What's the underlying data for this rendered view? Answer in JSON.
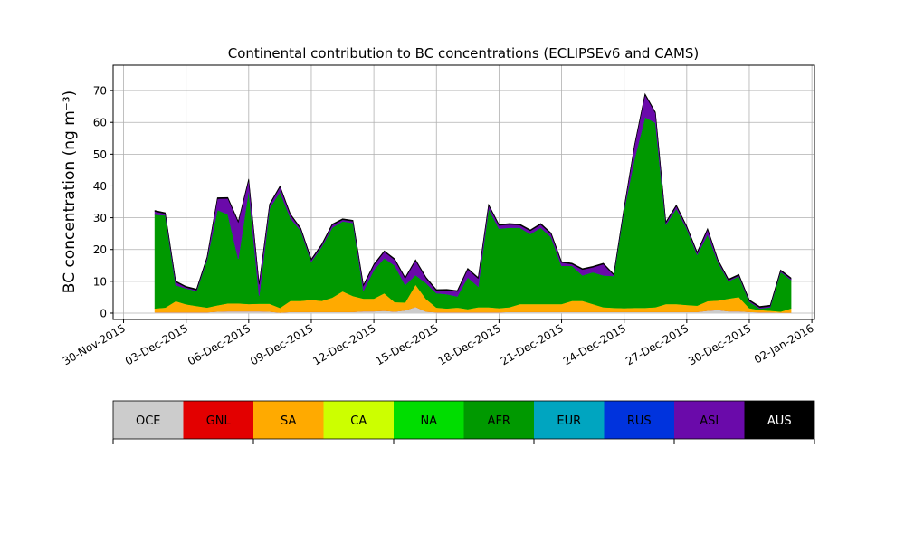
{
  "chart_data": {
    "type": "area",
    "stacked": true,
    "title": "Continental contribution to BC concentrations (ECLIPSEv6 and CAMS)",
    "ylabel": "BC concentration (ng m⁻³)",
    "xlabel": "",
    "ylim": [
      -2,
      78
    ],
    "yticks": [
      0,
      10,
      20,
      30,
      40,
      50,
      60,
      70
    ],
    "xlim": [
      "2015-11-29T12:00",
      "2016-01-02T03:00"
    ],
    "xtick_labels": [
      "30-Nov-2015",
      "03-Dec-2015",
      "06-Dec-2015",
      "09-Dec-2015",
      "12-Dec-2015",
      "15-Dec-2015",
      "18-Dec-2015",
      "21-Dec-2015",
      "24-Dec-2015",
      "27-Dec-2015",
      "30-Dec-2015",
      "02-Jan-2016"
    ],
    "grid": true,
    "legend_position": "colorbar-below",
    "x": [
      "2015-12-01T12:00",
      "2015-12-02T00:00",
      "2015-12-02T12:00",
      "2015-12-03T00:00",
      "2015-12-03T12:00",
      "2015-12-04T00:00",
      "2015-12-04T12:00",
      "2015-12-05T00:00",
      "2015-12-05T12:00",
      "2015-12-06T00:00",
      "2015-12-06T12:00",
      "2015-12-07T00:00",
      "2015-12-07T12:00",
      "2015-12-08T00:00",
      "2015-12-08T12:00",
      "2015-12-09T00:00",
      "2015-12-09T12:00",
      "2015-12-10T00:00",
      "2015-12-10T12:00",
      "2015-12-11T00:00",
      "2015-12-11T12:00",
      "2015-12-12T00:00",
      "2015-12-12T12:00",
      "2015-12-13T00:00",
      "2015-12-13T12:00",
      "2015-12-14T00:00",
      "2015-12-14T12:00",
      "2015-12-15T00:00",
      "2015-12-15T12:00",
      "2015-12-16T00:00",
      "2015-12-16T12:00",
      "2015-12-17T00:00",
      "2015-12-17T12:00",
      "2015-12-18T00:00",
      "2015-12-18T12:00",
      "2015-12-19T00:00",
      "2015-12-19T12:00",
      "2015-12-20T00:00",
      "2015-12-20T12:00",
      "2015-12-21T00:00",
      "2015-12-21T12:00",
      "2015-12-22T00:00",
      "2015-12-22T12:00",
      "2015-12-23T00:00",
      "2015-12-23T12:00",
      "2015-12-24T00:00",
      "2015-12-24T12:00",
      "2015-12-25T00:00",
      "2015-12-25T12:00",
      "2015-12-26T00:00",
      "2015-12-26T12:00",
      "2015-12-27T00:00",
      "2015-12-27T12:00",
      "2015-12-28T00:00",
      "2015-12-28T12:00",
      "2015-12-29T00:00",
      "2015-12-29T12:00",
      "2015-12-30T00:00",
      "2015-12-30T12:00",
      "2015-12-31T00:00",
      "2015-12-31T12:00",
      "2016-01-01T00:00"
    ],
    "series": [
      {
        "name": "OCE",
        "color": "#cccccc",
        "values": [
          0.3,
          0.3,
          0.3,
          0.3,
          0.3,
          0.3,
          0.5,
          0.6,
          0.6,
          0.6,
          0.6,
          0.5,
          0.2,
          0.4,
          0.4,
          0.4,
          0.4,
          0.4,
          0.4,
          0.4,
          0.6,
          0.6,
          0.8,
          0.5,
          0.9,
          2.0,
          0.5,
          0.3,
          0.3,
          0.3,
          0.3,
          0.3,
          0.3,
          0.3,
          0.4,
          0.4,
          0.4,
          0.4,
          0.4,
          0.4,
          0.4,
          0.4,
          0.4,
          0.4,
          0.4,
          0.4,
          0.4,
          0.4,
          0.4,
          0.4,
          0.4,
          0.4,
          0.4,
          0.8,
          1.0,
          0.6,
          0.6,
          0.4,
          0.3,
          0.3,
          0.2,
          0.2
        ]
      },
      {
        "name": "GNL",
        "color": "#e30000",
        "values": [
          0,
          0,
          0,
          0,
          0,
          0,
          0,
          0,
          0,
          0,
          0,
          0,
          0,
          0,
          0,
          0,
          0,
          0,
          0,
          0,
          0,
          0,
          0,
          0,
          0,
          0,
          0,
          0,
          0,
          0,
          0,
          0,
          0,
          0,
          0,
          0,
          0,
          0,
          0,
          0,
          0,
          0,
          0,
          0,
          0,
          0,
          0,
          0,
          0,
          0,
          0,
          0,
          0,
          0,
          0,
          0,
          0,
          0,
          0,
          0,
          0,
          0
        ]
      },
      {
        "name": "SA",
        "color": "#ffaa00",
        "values": [
          1.2,
          1.5,
          3.5,
          2.5,
          2.0,
          1.5,
          2.0,
          2.5,
          2.5,
          2.3,
          2.4,
          2.5,
          1.5,
          3.5,
          3.5,
          3.8,
          3.5,
          4.5,
          6.5,
          5.0,
          4.0,
          4.0,
          5.5,
          3.0,
          2.5,
          7.0,
          4.0,
          1.5,
          1.2,
          1.5,
          1.0,
          1.6,
          1.6,
          1.3,
          1.5,
          2.5,
          2.5,
          2.5,
          2.5,
          2.5,
          3.5,
          3.5,
          2.5,
          1.5,
          1.3,
          1.2,
          1.3,
          1.3,
          1.5,
          2.5,
          2.5,
          2.2,
          2.0,
          3.0,
          3.0,
          4.0,
          4.5,
          1.2,
          0.7,
          0.5,
          0.3,
          1.3
        ]
      },
      {
        "name": "CA",
        "color": "#ccff00",
        "values": [
          0,
          0,
          0,
          0,
          0,
          0,
          0,
          0,
          0,
          0,
          0,
          0,
          0,
          0,
          0,
          0,
          0,
          0,
          0,
          0,
          0,
          0,
          0,
          0,
          0,
          0,
          0,
          0,
          0,
          0,
          0,
          0,
          0,
          0,
          0,
          0,
          0,
          0,
          0,
          0,
          0,
          0,
          0,
          0,
          0,
          0,
          0,
          0,
          0,
          0,
          0,
          0,
          0,
          0,
          0,
          0,
          0,
          0,
          0,
          0,
          0,
          0
        ]
      },
      {
        "name": "NA",
        "color": "#00dd00",
        "values": [
          0,
          0,
          0,
          0,
          0,
          0,
          0,
          0,
          0,
          0,
          0,
          0,
          0,
          0,
          0,
          0,
          0,
          0,
          0,
          0,
          0,
          0,
          0,
          0,
          0,
          0,
          0,
          0,
          0,
          0,
          0,
          0,
          0,
          0,
          0,
          0,
          0,
          0,
          0,
          0,
          0,
          0,
          0,
          0,
          0,
          0,
          0,
          0,
          0,
          0,
          0,
          0,
          0,
          0,
          0,
          0,
          0,
          0,
          0,
          0,
          0,
          0
        ]
      },
      {
        "name": "AFR",
        "color": "#009900",
        "values": [
          29.5,
          29.0,
          5.0,
          5.0,
          4.7,
          15.0,
          30.0,
          28.0,
          14.0,
          36.0,
          2.5,
          30.0,
          36.5,
          26.0,
          22.0,
          12.0,
          17.0,
          22.0,
          22.0,
          23.0,
          2.5,
          9.0,
          11.0,
          11.5,
          5.5,
          3.0,
          5.0,
          4.5,
          4.5,
          3.5,
          10.0,
          6.5,
          31.0,
          25.0,
          25.0,
          24.0,
          22.0,
          24.0,
          21.0,
          12.0,
          11.0,
          8.0,
          10.0,
          10.0,
          10.0,
          31.0,
          47.0,
          60.0,
          58.0,
          25.0,
          30.0,
          24.0,
          16.0,
          21.0,
          12.0,
          5.5,
          6.5,
          2.0,
          0.5,
          1.1,
          12.5,
          9.0
        ]
      },
      {
        "name": "EUR",
        "color": "#00a5c0",
        "values": [
          0,
          0,
          0,
          0,
          0,
          0,
          0,
          0,
          0,
          0,
          0,
          0,
          0,
          0,
          0,
          0,
          0,
          0,
          0,
          0,
          0,
          0,
          0,
          0,
          0,
          0,
          0,
          0,
          0,
          0,
          0,
          0,
          0,
          0,
          0,
          0,
          0,
          0,
          0,
          0,
          0,
          0,
          0,
          0,
          0,
          0,
          0,
          0,
          0,
          0,
          0,
          0,
          0,
          0,
          0,
          0,
          0,
          0,
          0,
          0,
          0,
          0
        ]
      },
      {
        "name": "RUS",
        "color": "#0033dd",
        "values": [
          0,
          0,
          0,
          0,
          0,
          0,
          0,
          0,
          0,
          0,
          0,
          0,
          0,
          0,
          0,
          0,
          0,
          0,
          0,
          0,
          0,
          0,
          0,
          0,
          0,
          0,
          0,
          0,
          0,
          0,
          0,
          0,
          0,
          0,
          0,
          0,
          0,
          0,
          0,
          0,
          0,
          0,
          0,
          0,
          0,
          0,
          0,
          0,
          0,
          0,
          0,
          0,
          0,
          0,
          0,
          0,
          0,
          0,
          0,
          0,
          0,
          0
        ]
      },
      {
        "name": "ASI",
        "color": "#6a0aaa",
        "values": [
          1.0,
          0.5,
          1.0,
          0.3,
          0.3,
          0.5,
          3.5,
          5.0,
          11.5,
          3.0,
          3.5,
          1.0,
          1.5,
          1.0,
          0.5,
          0.5,
          0.5,
          0.8,
          0.5,
          0.5,
          1.5,
          1.5,
          2.0,
          1.8,
          2.0,
          4.5,
          1.5,
          0.8,
          1.2,
          1.5,
          2.5,
          2.5,
          1.0,
          1.0,
          1.0,
          0.8,
          1.0,
          1.0,
          1.0,
          1.0,
          0.5,
          1.8,
          1.5,
          3.5,
          0.3,
          0.5,
          4.0,
          7.0,
          3.0,
          0.5,
          0.8,
          0.5,
          0.5,
          1.5,
          0.5,
          0.3,
          0.3,
          0.3,
          0.3,
          0.3,
          0.3,
          0.3
        ]
      },
      {
        "name": "AUS",
        "color": "#000000",
        "values": [
          0.3,
          0.3,
          0.3,
          0.3,
          0.3,
          0.3,
          0.3,
          0.3,
          0.3,
          0.3,
          0.3,
          0.3,
          0.3,
          0.3,
          0.3,
          0.3,
          0.3,
          0.3,
          0.3,
          0.3,
          0.3,
          0.3,
          0.3,
          0.3,
          0.3,
          0.3,
          0.3,
          0.3,
          0.3,
          0.3,
          0.3,
          0.3,
          0.3,
          0.3,
          0.3,
          0.3,
          0.3,
          0.3,
          0.3,
          0.3,
          0.3,
          0.3,
          0.3,
          0.3,
          0.3,
          0.3,
          0.3,
          0.3,
          0.3,
          0.3,
          0.3,
          0.3,
          0.3,
          0.3,
          0.3,
          0.3,
          0.3,
          0.3,
          0.3,
          0.3,
          0.3,
          0.3
        ]
      }
    ]
  }
}
